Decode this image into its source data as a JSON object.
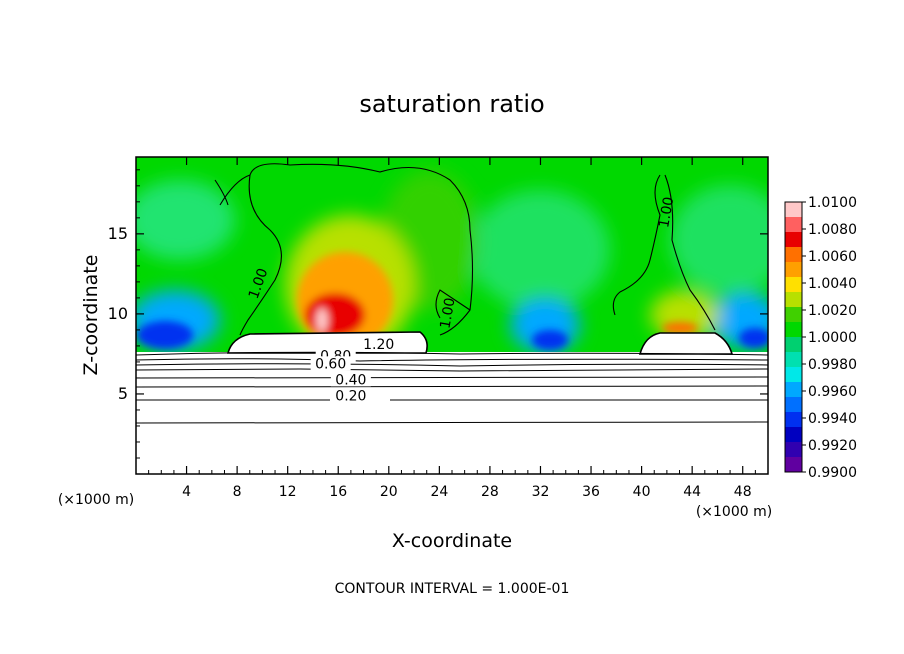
{
  "chart_data": {
    "type": "heatmap",
    "title": "saturation ratio",
    "xlabel": "X-coordinate",
    "ylabel": "Z-coordinate",
    "x_unit_left": "(×1000 m)",
    "x_unit_right": "(×1000 m)",
    "footer": "CONTOUR INTERVAL = 1.000E-01",
    "xlim": [
      0,
      50
    ],
    "ylim": [
      0,
      19.8
    ],
    "x_ticks": [
      4,
      8,
      12,
      16,
      20,
      24,
      28,
      32,
      36,
      40,
      44,
      48
    ],
    "y_ticks": [
      5,
      10,
      15
    ],
    "grid": false,
    "legend_position": "right",
    "colorbar": {
      "levels": [
        "1.0100",
        "1.0080",
        "1.0060",
        "1.0040",
        "1.0020",
        "1.0000",
        "0.9980",
        "0.9960",
        "0.9940",
        "0.9920",
        "0.9900"
      ],
      "colors": [
        "#ffc8c8",
        "#ff6060",
        "#e80000",
        "#ff7000",
        "#ffa000",
        "#ffe000",
        "#b8e000",
        "#40d000",
        "#00d800",
        "#00d070",
        "#00e0b0",
        "#00e8e8",
        "#00a8ff",
        "#0070ff",
        "#0030f0",
        "#0000c0",
        "#3000b0",
        "#6000a0"
      ]
    },
    "contour_labels": [
      {
        "text": "1.20",
        "x": 19.2,
        "z": 7.8
      },
      {
        "text": "0.80",
        "x": 15.8,
        "z": 7.1
      },
      {
        "text": "0.60",
        "x": 15.4,
        "z": 6.6
      },
      {
        "text": "0.40",
        "x": 17.0,
        "z": 5.6
      },
      {
        "text": "0.20",
        "x": 17.0,
        "z": 4.6
      },
      {
        "text": "1.00",
        "x": 10.0,
        "z": 11.8
      },
      {
        "text": "1.00",
        "x": 25.0,
        "z": 10.0
      },
      {
        "text": "1.00",
        "x": 42.3,
        "z": 16.3
      }
    ],
    "colors": {
      "background_field": "#00d800",
      "plateau": "#ffffff",
      "contour": "#000000"
    }
  }
}
